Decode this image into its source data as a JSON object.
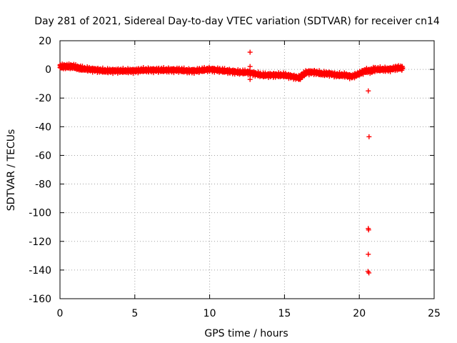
{
  "chart_data": {
    "type": "scatter",
    "title": "Day 281 of 2021, Sidereal Day-to-day VTEC variation (SDTVAR) for receiver cn14",
    "xlabel": "GPS time / hours",
    "ylabel": "SDTVAR / TECUs",
    "xlim": [
      0,
      25
    ],
    "ylim": [
      -160,
      20
    ],
    "xticks": [
      0,
      5,
      10,
      15,
      20,
      25
    ],
    "yticks": [
      20,
      0,
      -20,
      -40,
      -60,
      -80,
      -100,
      -120,
      -140,
      -160
    ],
    "grid": true,
    "marker": "plus",
    "series_color": "#ff0000",
    "series": [
      {
        "name": "SDTVAR",
        "trace": [
          [
            0.0,
            2
          ],
          [
            0.3,
            2
          ],
          [
            0.6,
            2
          ],
          [
            0.9,
            2
          ],
          [
            1.2,
            1
          ],
          [
            1.5,
            0.5
          ],
          [
            2.0,
            0
          ],
          [
            2.5,
            -0.5
          ],
          [
            3.0,
            -1
          ],
          [
            3.5,
            -1
          ],
          [
            4.0,
            -1
          ],
          [
            4.5,
            -1
          ],
          [
            5.0,
            -1
          ],
          [
            5.5,
            -0.5
          ],
          [
            6.0,
            -0.5
          ],
          [
            6.5,
            -0.5
          ],
          [
            7.0,
            -0.5
          ],
          [
            7.5,
            -0.5
          ],
          [
            8.0,
            -0.5
          ],
          [
            8.5,
            -1
          ],
          [
            9.0,
            -1
          ],
          [
            9.5,
            -0.5
          ],
          [
            10.0,
            0
          ],
          [
            10.5,
            -0.5
          ],
          [
            11.0,
            -1
          ],
          [
            11.5,
            -1.5
          ],
          [
            12.0,
            -2
          ],
          [
            12.5,
            -2
          ],
          [
            13.0,
            -3
          ],
          [
            13.5,
            -4
          ],
          [
            14.0,
            -4
          ],
          [
            14.5,
            -4
          ],
          [
            15.0,
            -4
          ],
          [
            15.5,
            -5
          ],
          [
            16.0,
            -6
          ],
          [
            16.2,
            -4
          ],
          [
            16.5,
            -2
          ],
          [
            17.0,
            -2
          ],
          [
            17.5,
            -3
          ],
          [
            18.0,
            -3
          ],
          [
            18.5,
            -4
          ],
          [
            19.0,
            -4
          ],
          [
            19.5,
            -5
          ],
          [
            20.0,
            -3
          ],
          [
            20.4,
            -1
          ],
          [
            20.8,
            -1
          ],
          [
            21.0,
            0
          ],
          [
            21.5,
            0
          ],
          [
            22.0,
            0
          ],
          [
            22.5,
            1
          ],
          [
            22.9,
            1
          ]
        ],
        "outliers": [
          [
            12.7,
            12
          ],
          [
            12.7,
            2
          ],
          [
            12.7,
            -7
          ],
          [
            20.6,
            -15
          ],
          [
            20.65,
            -47
          ],
          [
            20.6,
            -111
          ],
          [
            20.62,
            -112
          ],
          [
            20.6,
            -129
          ],
          [
            20.58,
            -141
          ],
          [
            20.64,
            -142
          ]
        ]
      }
    ]
  }
}
